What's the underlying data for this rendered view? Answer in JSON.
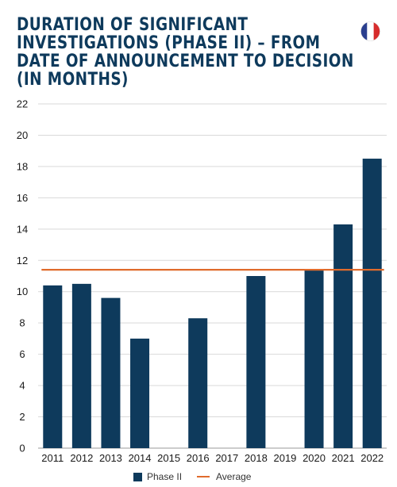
{
  "title_lines": [
    "DURATION OF SIGNIFICANT",
    "INVESTIGATIONS (PHASE II) – FROM",
    "DATE OF ANNOUNCEMENT TO DECISION",
    "(IN MONTHS)"
  ],
  "flag": {
    "icon": "france-flag-icon",
    "colors": [
      "#2a3f8f",
      "#ffffff",
      "#d72c2c"
    ]
  },
  "colors": {
    "bar": "#0e3a5c",
    "average": "#e06b2c",
    "grid": "#d9d9d9"
  },
  "legend": {
    "bar_label": "Phase II",
    "line_label": "Average"
  },
  "chart_data": {
    "type": "bar",
    "categories": [
      "2011",
      "2012",
      "2013",
      "2014",
      "2015",
      "2016",
      "2017",
      "2018",
      "2019",
      "2020",
      "2021",
      "2022"
    ],
    "series": [
      {
        "name": "Phase II",
        "values": [
          10.4,
          10.5,
          9.6,
          7.0,
          null,
          8.3,
          null,
          11.0,
          null,
          11.4,
          14.3,
          18.5
        ]
      }
    ],
    "average": {
      "name": "Average",
      "value": 11.4
    },
    "yticks": [
      0,
      2,
      4,
      6,
      8,
      10,
      12,
      14,
      16,
      18,
      20,
      22
    ],
    "ylim": [
      0,
      22
    ],
    "grid": true,
    "legend_position": "bottom"
  }
}
